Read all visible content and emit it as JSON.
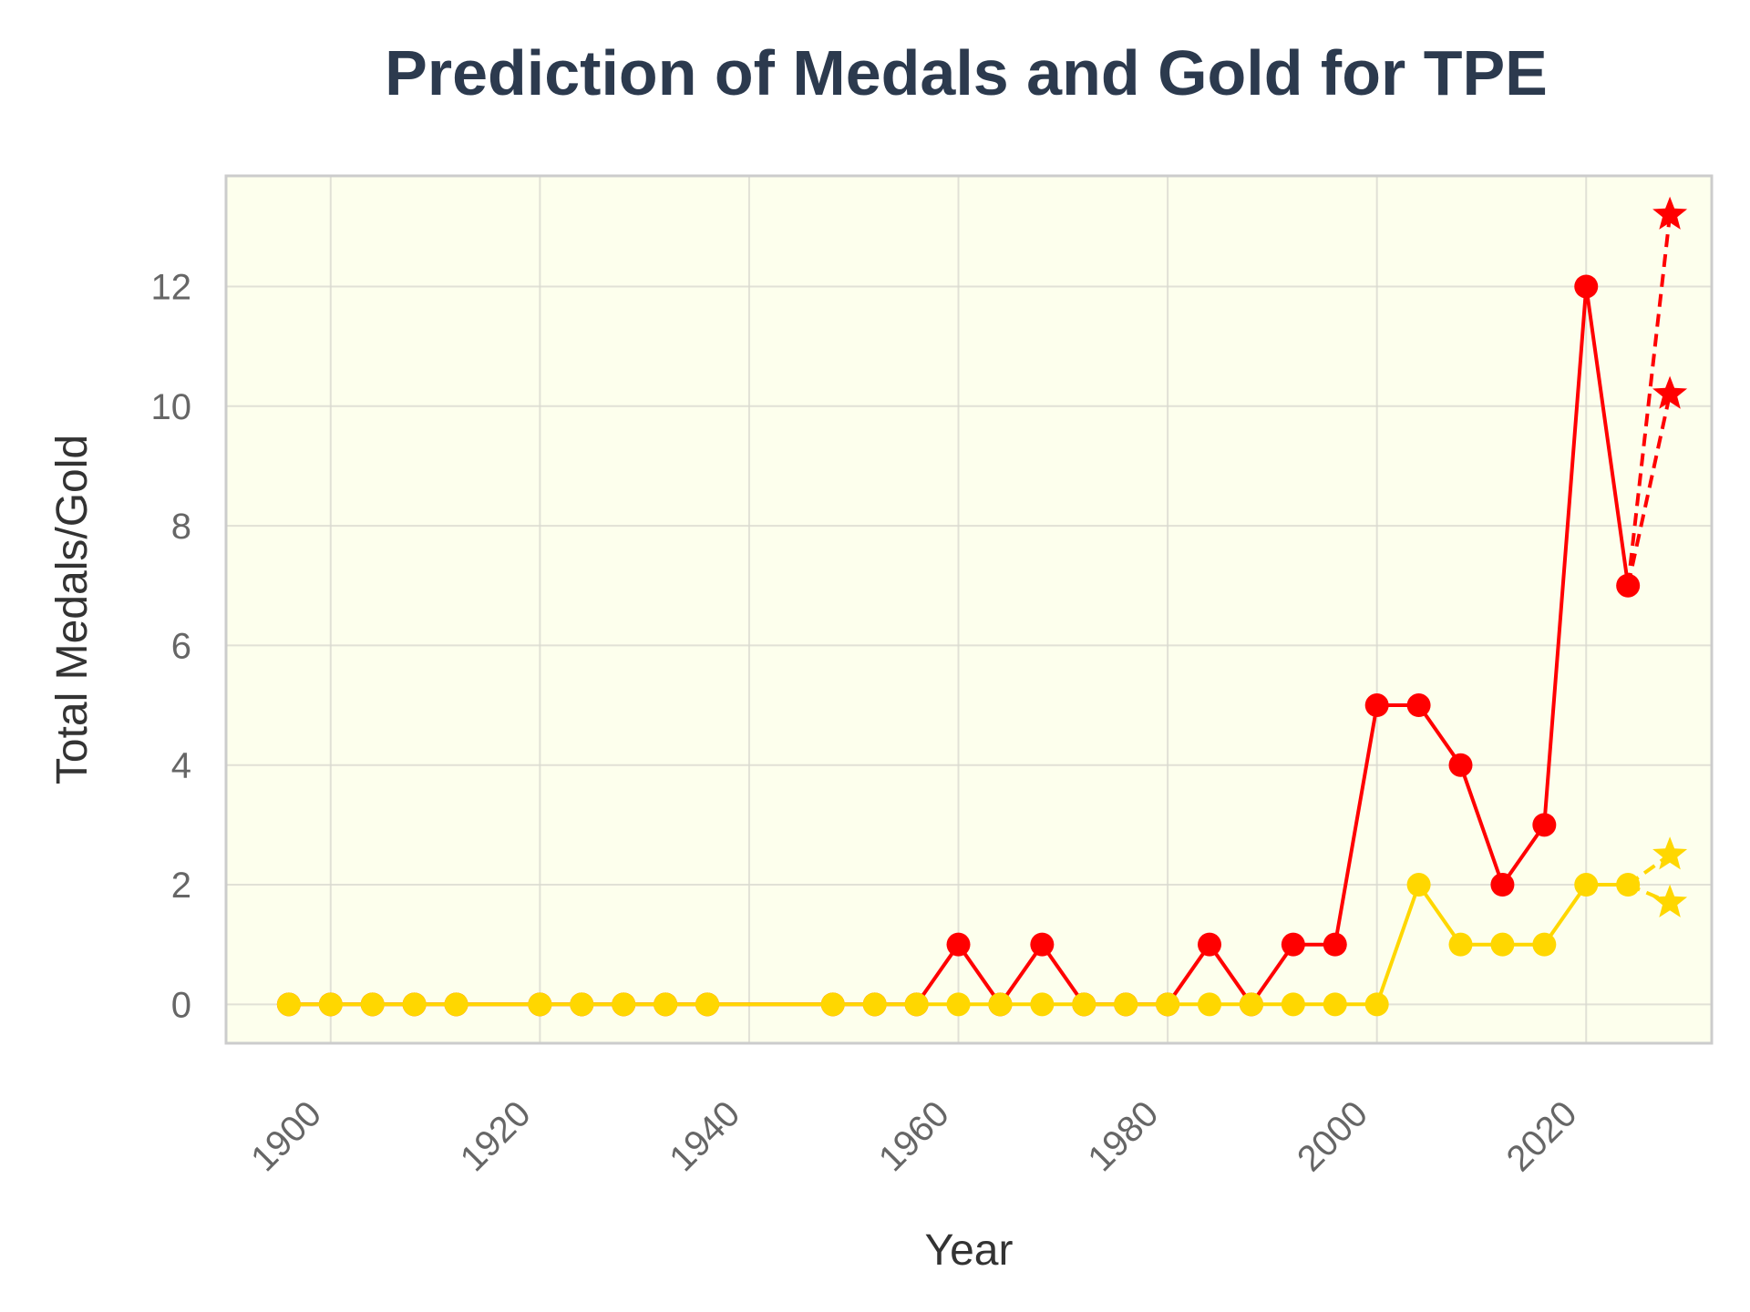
{
  "chart_data": {
    "type": "line",
    "title": "Prediction of Medals and Gold for TPE",
    "xlabel": "Year",
    "ylabel": "Total Medals/Gold",
    "xlim": [
      1890,
      2032
    ],
    "ylim": [
      -0.65,
      13.85
    ],
    "x_ticks": [
      1900,
      1920,
      1940,
      1960,
      1980,
      2000,
      2020
    ],
    "y_ticks": [
      0,
      2,
      4,
      6,
      8,
      10,
      12
    ],
    "grid": true,
    "legend": "none",
    "background": "#fdffed",
    "series": [
      {
        "color": "#ff0000",
        "marker": "circle",
        "line": "solid",
        "points": [
          [
            1896,
            0
          ],
          [
            1900,
            0
          ],
          [
            1904,
            0
          ],
          [
            1908,
            0
          ],
          [
            1912,
            0
          ],
          [
            1920,
            0
          ],
          [
            1924,
            0
          ],
          [
            1928,
            0
          ],
          [
            1932,
            0
          ],
          [
            1936,
            0
          ],
          [
            1948,
            0
          ],
          [
            1952,
            0
          ],
          [
            1956,
            0
          ],
          [
            1960,
            1
          ],
          [
            1964,
            0
          ],
          [
            1968,
            1
          ],
          [
            1972,
            0
          ],
          [
            1976,
            0
          ],
          [
            1980,
            0
          ],
          [
            1984,
            1
          ],
          [
            1988,
            0
          ],
          [
            1992,
            1
          ],
          [
            1996,
            1
          ],
          [
            2000,
            5
          ],
          [
            2004,
            5
          ],
          [
            2008,
            4
          ],
          [
            2012,
            2
          ],
          [
            2016,
            3
          ],
          [
            2020,
            12
          ],
          [
            2024,
            7
          ]
        ]
      },
      {
        "color": "#ffd700",
        "marker": "circle",
        "line": "solid",
        "points": [
          [
            1896,
            0
          ],
          [
            1900,
            0
          ],
          [
            1904,
            0
          ],
          [
            1908,
            0
          ],
          [
            1912,
            0
          ],
          [
            1920,
            0
          ],
          [
            1924,
            0
          ],
          [
            1928,
            0
          ],
          [
            1932,
            0
          ],
          [
            1936,
            0
          ],
          [
            1948,
            0
          ],
          [
            1952,
            0
          ],
          [
            1956,
            0
          ],
          [
            1960,
            0
          ],
          [
            1964,
            0
          ],
          [
            1968,
            0
          ],
          [
            1972,
            0
          ],
          [
            1976,
            0
          ],
          [
            1980,
            0
          ],
          [
            1984,
            0
          ],
          [
            1988,
            0
          ],
          [
            1992,
            0
          ],
          [
            1996,
            0
          ],
          [
            2000,
            0
          ],
          [
            2004,
            2
          ],
          [
            2008,
            1
          ],
          [
            2012,
            1
          ],
          [
            2016,
            1
          ],
          [
            2020,
            2
          ],
          [
            2024,
            2
          ]
        ]
      }
    ],
    "predictions": [
      {
        "color": "#ff0000",
        "from": [
          2024,
          7
        ],
        "x": 2028,
        "values": [
          13.2,
          10.2
        ]
      },
      {
        "color": "#ffd700",
        "from": [
          2024,
          2
        ],
        "x": 2028,
        "values": [
          2.5,
          1.7
        ]
      }
    ]
  }
}
